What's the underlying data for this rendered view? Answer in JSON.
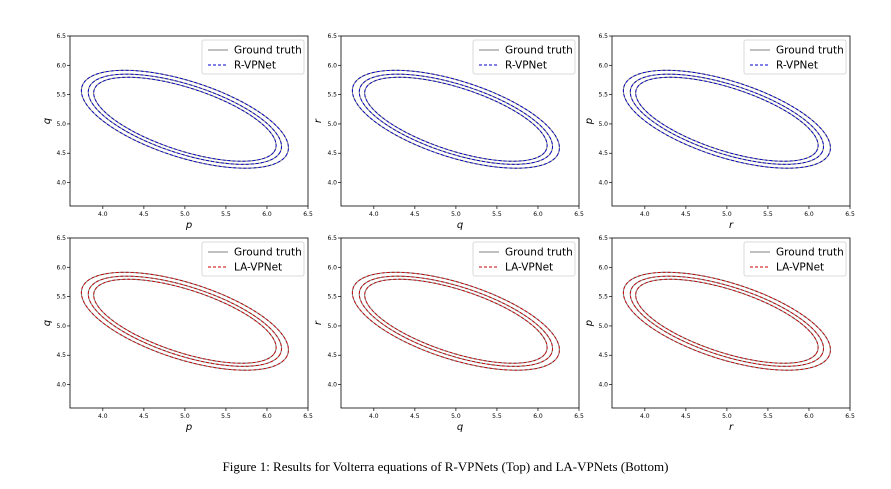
{
  "caption": "Figure 1: Results for Volterra equations of R-VPNets (Top) and LA-VPNets (Bottom)",
  "colors": {
    "ground_truth": "#808080",
    "r_vpnet": "#0000cc",
    "la_vpnet": "#cc0000",
    "axes": "#000000"
  },
  "chart_data": [
    {
      "type": "line",
      "row": "top",
      "xlabel": "p",
      "ylabel": "q",
      "xlim": [
        3.6,
        6.5
      ],
      "ylim": [
        3.6,
        6.5
      ],
      "xticks": [
        "4.0",
        "4.5",
        "5.0",
        "5.5",
        "6.0",
        "6.5"
      ],
      "yticks": [
        "4.0",
        "4.5",
        "5.0",
        "5.5",
        "6.0",
        "6.5"
      ],
      "legend": "top-right",
      "grid": false,
      "series": [
        {
          "name": "Ground truth",
          "style": "solid"
        },
        {
          "name": "R-VPNet",
          "style": "dashed"
        }
      ]
    },
    {
      "type": "line",
      "row": "top",
      "xlabel": "q",
      "ylabel": "r",
      "xlim": [
        3.6,
        6.5
      ],
      "ylim": [
        3.6,
        6.5
      ],
      "xticks": [
        "4.0",
        "4.5",
        "5.0",
        "5.5",
        "6.0",
        "6.5"
      ],
      "yticks": [
        "4.0",
        "4.5",
        "5.0",
        "5.5",
        "6.0",
        "6.5"
      ],
      "legend": "top-right",
      "grid": false,
      "series": [
        {
          "name": "Ground truth",
          "style": "solid"
        },
        {
          "name": "R-VPNet",
          "style": "dashed"
        }
      ]
    },
    {
      "type": "line",
      "row": "top",
      "xlabel": "r",
      "ylabel": "p",
      "xlim": [
        3.6,
        6.5
      ],
      "ylim": [
        3.6,
        6.5
      ],
      "xticks": [
        "4.0",
        "4.5",
        "5.0",
        "5.5",
        "6.0",
        "6.5"
      ],
      "yticks": [
        "4.0",
        "4.5",
        "5.0",
        "5.5",
        "6.0",
        "6.5"
      ],
      "legend": "top-right",
      "grid": false,
      "series": [
        {
          "name": "Ground truth",
          "style": "solid"
        },
        {
          "name": "R-VPNet",
          "style": "dashed"
        }
      ]
    },
    {
      "type": "line",
      "row": "bottom",
      "xlabel": "p",
      "ylabel": "q",
      "xlim": [
        3.6,
        6.5
      ],
      "ylim": [
        3.6,
        6.5
      ],
      "xticks": [
        "4.0",
        "4.5",
        "5.0",
        "5.5",
        "6.0",
        "6.5"
      ],
      "yticks": [
        "4.0",
        "4.5",
        "5.0",
        "5.5",
        "6.0",
        "6.5"
      ],
      "legend": "top-right",
      "grid": false,
      "series": [
        {
          "name": "Ground truth",
          "style": "solid"
        },
        {
          "name": "LA-VPNet",
          "style": "dashed"
        }
      ]
    },
    {
      "type": "line",
      "row": "bottom",
      "xlabel": "q",
      "ylabel": "r",
      "xlim": [
        3.6,
        6.5
      ],
      "ylim": [
        3.6,
        6.5
      ],
      "xticks": [
        "4.0",
        "4.5",
        "5.0",
        "5.5",
        "6.0",
        "6.5"
      ],
      "yticks": [
        "4.0",
        "4.5",
        "5.0",
        "5.5",
        "6.0",
        "6.5"
      ],
      "legend": "top-right",
      "grid": false,
      "series": [
        {
          "name": "Ground truth",
          "style": "solid"
        },
        {
          "name": "LA-VPNet",
          "style": "dashed"
        }
      ]
    },
    {
      "type": "line",
      "row": "bottom",
      "xlabel": "r",
      "ylabel": "p",
      "xlim": [
        3.6,
        6.5
      ],
      "ylim": [
        3.6,
        6.5
      ],
      "xticks": [
        "4.0",
        "4.5",
        "5.0",
        "5.5",
        "6.0",
        "6.5"
      ],
      "yticks": [
        "4.0",
        "4.5",
        "5.0",
        "5.5",
        "6.0",
        "6.5"
      ],
      "legend": "top-right",
      "grid": false,
      "series": [
        {
          "name": "Ground truth",
          "style": "solid"
        },
        {
          "name": "LA-VPNet",
          "style": "dashed"
        }
      ]
    }
  ],
  "orbits": [
    {
      "center": [
        5.0,
        5.08
      ],
      "semi_major": 1.38,
      "semi_minor": 0.62,
      "angle_deg": -27
    },
    {
      "center": [
        5.0,
        5.08
      ],
      "semi_major": 1.29,
      "semi_minor": 0.56,
      "angle_deg": -27
    },
    {
      "center": [
        5.0,
        5.08
      ],
      "semi_major": 1.22,
      "semi_minor": 0.51,
      "angle_deg": -27
    }
  ]
}
